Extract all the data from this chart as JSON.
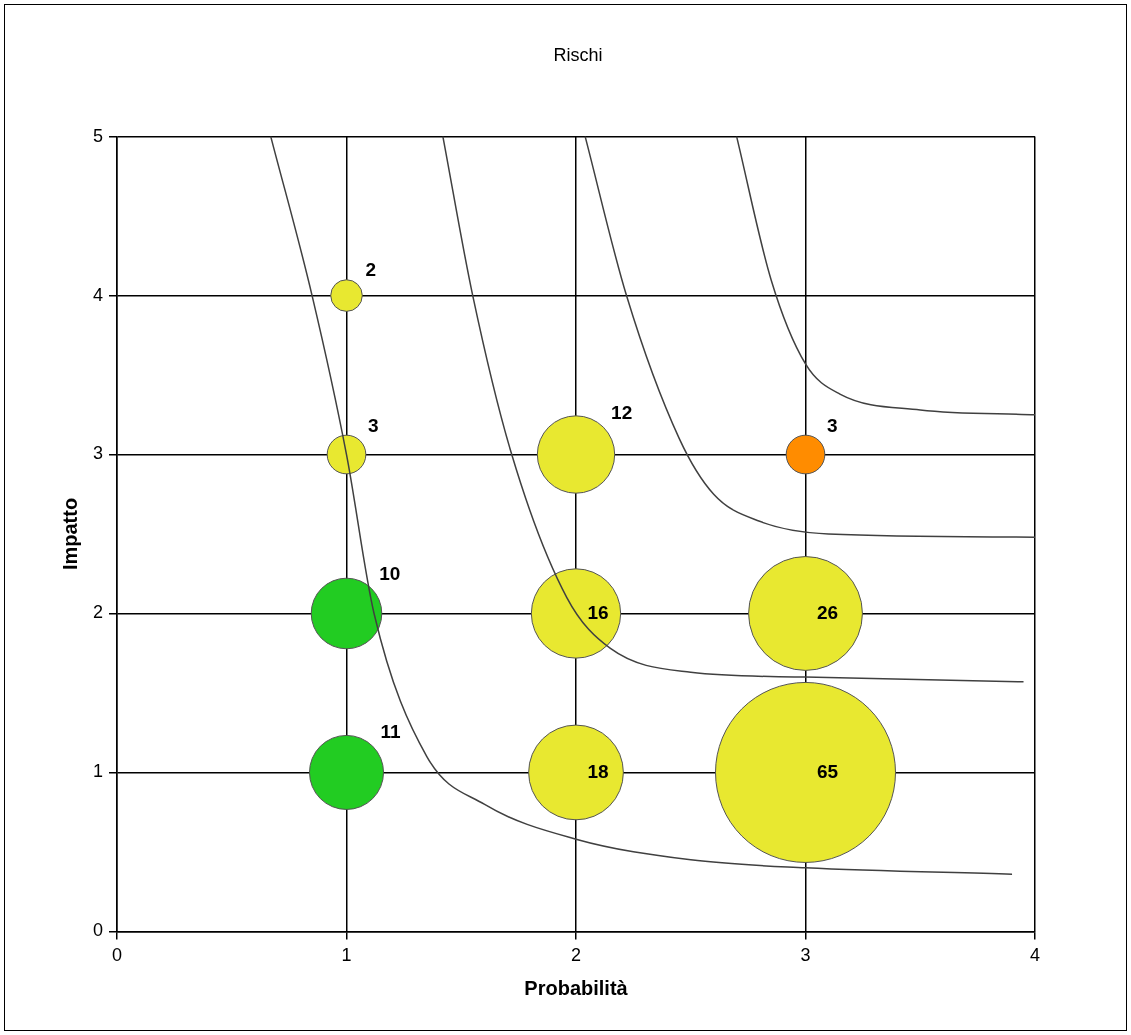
{
  "chart_data": {
    "type": "bubble",
    "title": "Rischi",
    "xlabel": "Probabilità",
    "ylabel": "Impatto",
    "xlim": [
      0,
      4
    ],
    "ylim": [
      0,
      5
    ],
    "xticks": [
      0,
      1,
      2,
      3,
      4
    ],
    "yticks": [
      0,
      1,
      2,
      3,
      4,
      5
    ],
    "grid": true,
    "series": [
      {
        "x": [
          1,
          1,
          2,
          3,
          1,
          2,
          3,
          1,
          2,
          3
        ],
        "values": [
          4,
          3,
          3,
          3,
          2,
          2,
          2,
          1,
          1,
          1
        ],
        "sizes": [
          2,
          3,
          12,
          3,
          10,
          16,
          26,
          11,
          18,
          65
        ],
        "value_labels": [
          "2",
          "3",
          "12",
          "3",
          "10",
          "16",
          "26",
          "11",
          "18",
          "65"
        ],
        "colors": [
          "#e8e830",
          "#e8e830",
          "#e8e830",
          "#ff8c00",
          "#22cc22",
          "#e8e830",
          "#e8e830",
          "#22cc22",
          "#e8e830",
          "#e8e830"
        ]
      },
      {
        "type": "line",
        "color": "#404040",
        "marker": "none",
        "x": [
          0.67,
          0.85,
          1.0,
          1.12,
          1.35,
          1.6,
          2.0,
          2.5,
          3.0,
          3.9
        ],
        "values": [
          5,
          4,
          3,
          2,
          1.1,
          0.8,
          0.58,
          0.45,
          0.4,
          0.36
        ]
      },
      {
        "type": "line",
        "color": "#404040",
        "marker": "none",
        "x": [
          1.42,
          1.55,
          1.72,
          1.96,
          2.15,
          2.5,
          3.0,
          3.95
        ],
        "values": [
          5,
          4,
          3,
          2.1,
          1.78,
          1.63,
          1.6,
          1.57
        ]
      },
      {
        "type": "line",
        "color": "#404040",
        "marker": "none",
        "x": [
          2.04,
          2.22,
          2.45,
          2.6,
          2.8,
          3.1,
          4.0
        ],
        "values": [
          5,
          4,
          3.1,
          2.75,
          2.58,
          2.5,
          2.48
        ]
      },
      {
        "type": "line",
        "color": "#404040",
        "marker": "none",
        "x": [
          2.7,
          2.85,
          3.0,
          3.15,
          3.5,
          4.0
        ],
        "values": [
          5,
          4.1,
          3.57,
          3.38,
          3.28,
          3.25
        ]
      }
    ]
  }
}
